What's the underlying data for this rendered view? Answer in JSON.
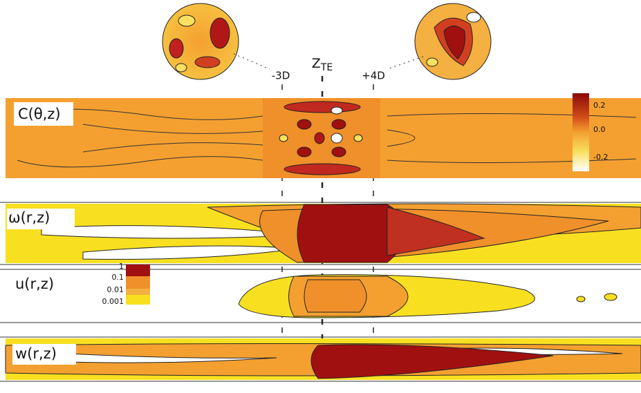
{
  "markers": {
    "left": "-3D",
    "center": {
      "main": "Z",
      "sub": "TE"
    },
    "right": "+4D"
  },
  "panels": [
    {
      "label": "C(θ,z)",
      "colorbar": [
        "0.2",
        "0.0",
        "-0.2"
      ]
    },
    {
      "label": "ω(r,z)"
    },
    {
      "label": "u(r,z)",
      "colorbar": [
        "1",
        "0.1",
        "0.01",
        "0.001"
      ]
    },
    {
      "label": "w(r,z)"
    }
  ]
}
